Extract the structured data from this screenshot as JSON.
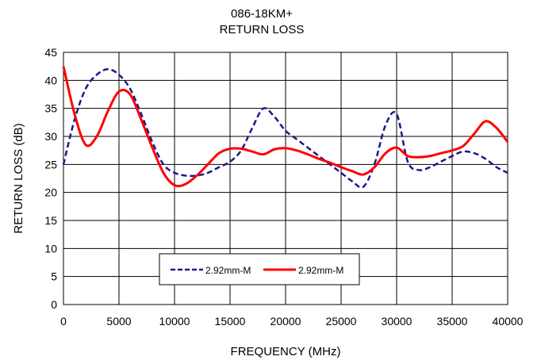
{
  "chart_data": {
    "type": "line",
    "title": [
      "086-18KM+",
      "RETURN LOSS"
    ],
    "xlabel": "FREQUENCY (MHz)",
    "ylabel": "RETURN LOSS (dB)",
    "xlim": [
      0,
      40000
    ],
    "ylim": [
      0,
      45
    ],
    "x_ticks": [
      0,
      5000,
      10000,
      15000,
      20000,
      25000,
      30000,
      35000,
      40000
    ],
    "y_ticks": [
      0,
      5,
      10,
      15,
      20,
      25,
      30,
      35,
      40,
      45
    ],
    "grid": true,
    "legend_position": "lower-center",
    "series": [
      {
        "name": "2.92mm-M",
        "color": "#1a1a8c",
        "style": "dashed",
        "x": [
          0,
          1000,
          2000,
          3000,
          4000,
          5000,
          6000,
          7000,
          8000,
          9000,
          10000,
          11000,
          12000,
          13000,
          14000,
          15000,
          16000,
          17000,
          18000,
          19000,
          20000,
          21000,
          22000,
          23000,
          24000,
          25000,
          26000,
          27000,
          28000,
          29000,
          30000,
          31000,
          32000,
          33000,
          34000,
          35000,
          36000,
          37000,
          38000,
          39000,
          40000
        ],
        "y": [
          25,
          33,
          38.5,
          41,
          42,
          41,
          38.5,
          34,
          29,
          25,
          23.5,
          23,
          23,
          23.5,
          24.5,
          25.5,
          27.5,
          31.5,
          35,
          33.5,
          31,
          29.5,
          28,
          26.5,
          25,
          23.5,
          22,
          21,
          25,
          32,
          34,
          25.5,
          24,
          24.5,
          25.5,
          26.5,
          27.3,
          27,
          26,
          24.5,
          23.5
        ]
      },
      {
        "name": "2.92mm-M",
        "color": "#ff0000",
        "style": "solid",
        "x": [
          0,
          1000,
          2000,
          3000,
          4000,
          5000,
          6000,
          7000,
          8000,
          9000,
          10000,
          11000,
          12000,
          13000,
          14000,
          15000,
          16000,
          17000,
          18000,
          19000,
          20000,
          21000,
          22000,
          23000,
          24000,
          25000,
          26000,
          27000,
          28000,
          29000,
          30000,
          31000,
          32000,
          33000,
          34000,
          35000,
          36000,
          37000,
          38000,
          39000,
          40000
        ],
        "y": [
          42.5,
          34,
          28.5,
          30,
          34.5,
          38,
          37.5,
          33,
          28,
          23.5,
          21.3,
          21.5,
          23,
          25,
          27,
          27.8,
          27.8,
          27.3,
          26.8,
          27.7,
          27.9,
          27.5,
          26.8,
          26,
          25.3,
          24.5,
          23.8,
          23.2,
          24.5,
          27,
          28,
          26.5,
          26.3,
          26.5,
          27,
          27.5,
          28.3,
          30.5,
          32.7,
          31.5,
          29
        ]
      }
    ]
  }
}
